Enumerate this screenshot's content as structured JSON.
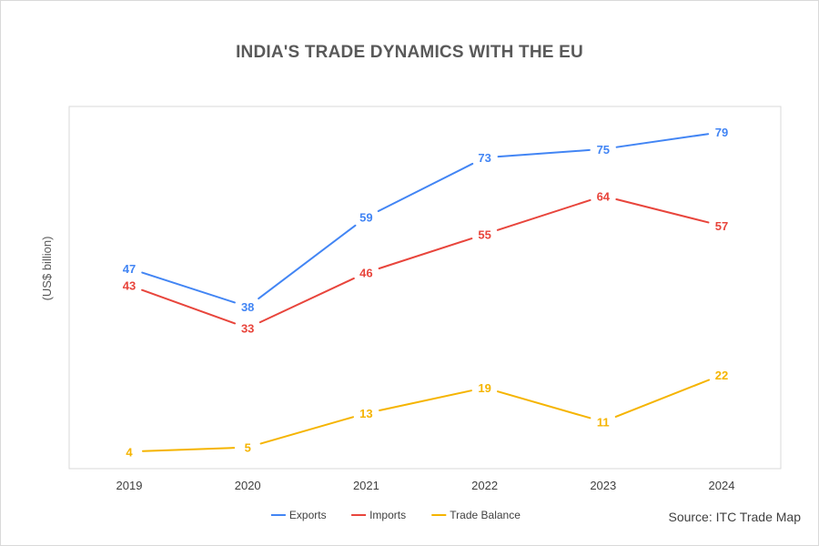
{
  "chart_data": {
    "type": "line",
    "title": "INDIA'S TRADE DYNAMICS WITH THE EU",
    "ylabel": "(US$ billion)",
    "xlabel": "",
    "categories": [
      "2019",
      "2020",
      "2021",
      "2022",
      "2023",
      "2024"
    ],
    "ylim": [
      0,
      85
    ],
    "grid": false,
    "legend": "bottom",
    "series": [
      {
        "name": "Exports",
        "color": "#4285f4",
        "values": [
          47,
          38,
          59,
          73,
          75,
          79
        ]
      },
      {
        "name": "Imports",
        "color": "#e8453c",
        "values": [
          43,
          33,
          46,
          55,
          64,
          57
        ]
      },
      {
        "name": "Trade Balance",
        "color": "#f5b400",
        "values": [
          4,
          5,
          13,
          19,
          11,
          22
        ]
      }
    ],
    "source": "Source: ITC Trade Map"
  }
}
